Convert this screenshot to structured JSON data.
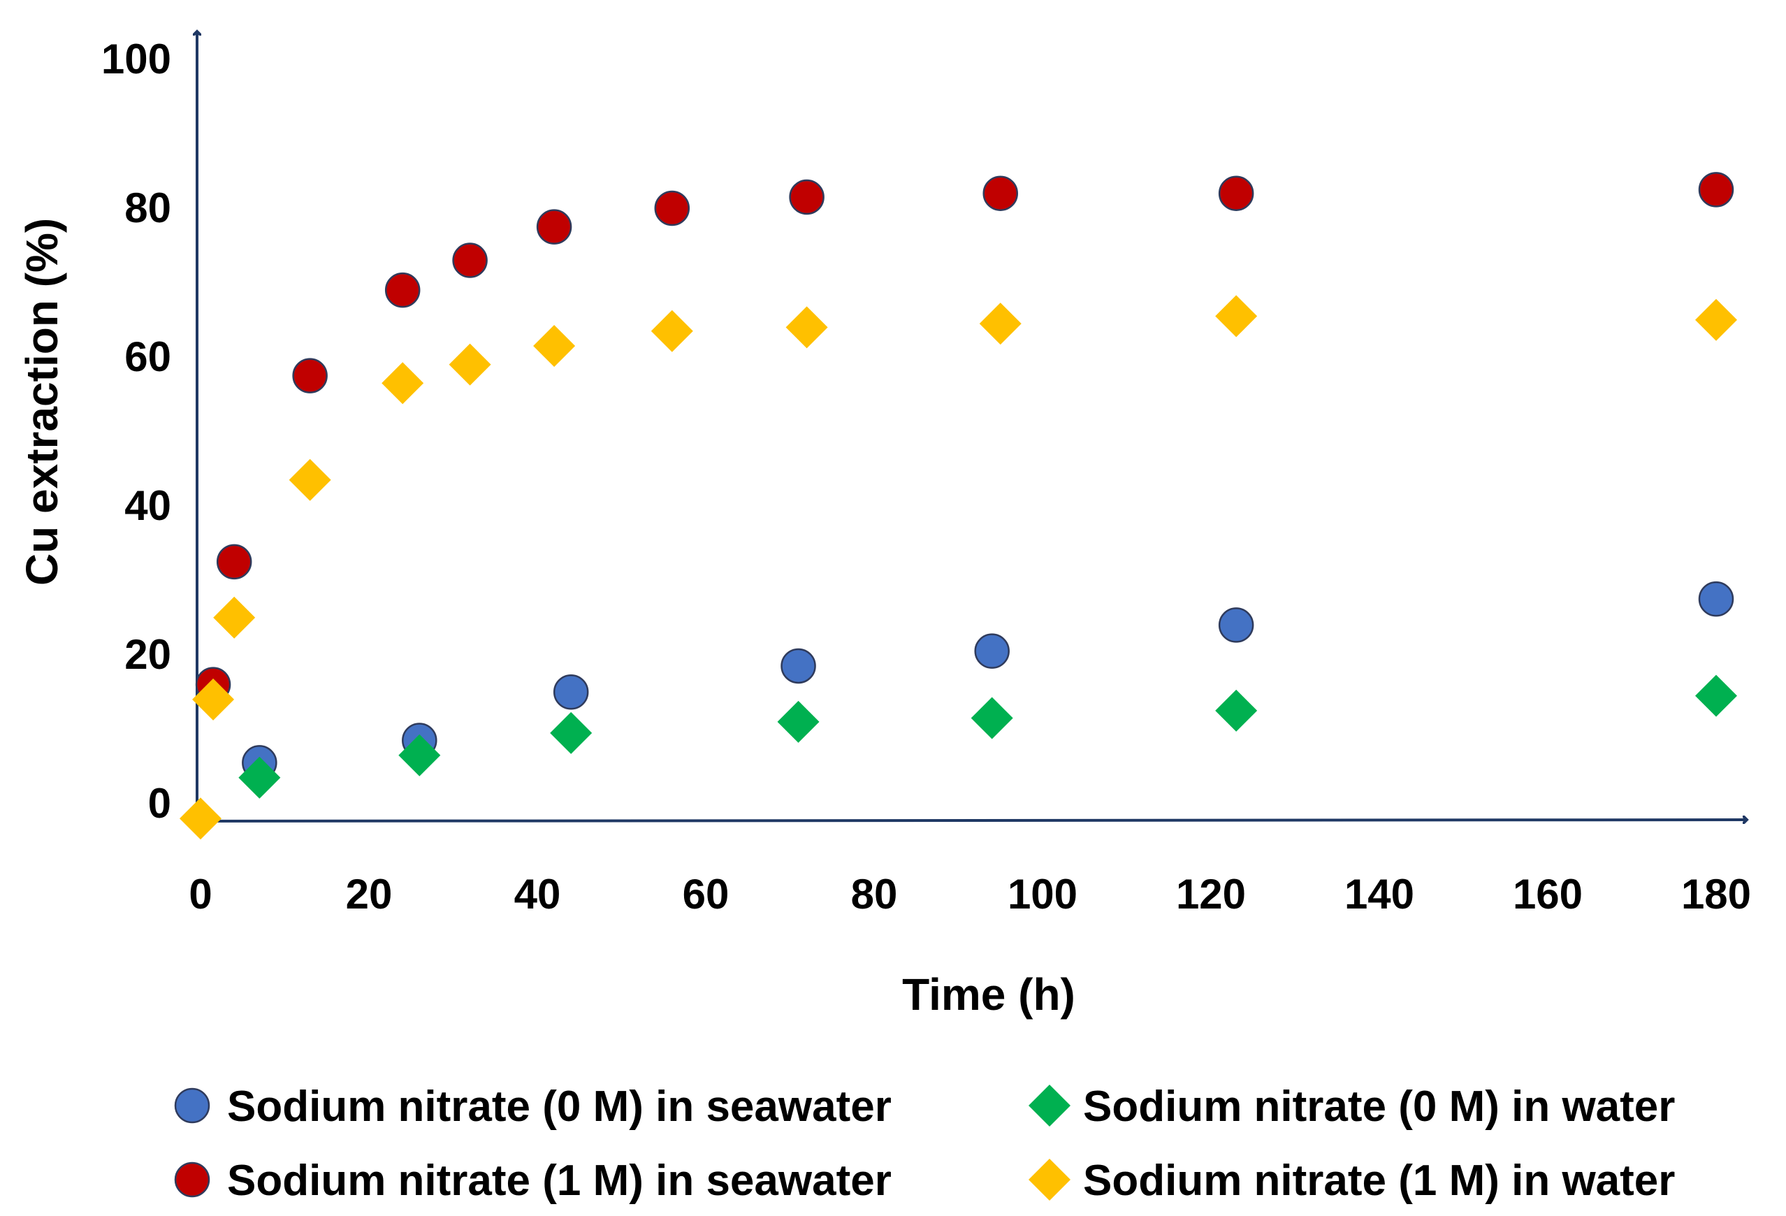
{
  "chart_data": {
    "type": "scatter",
    "title": "",
    "xlabel": "Time (h)",
    "ylabel": "Cu extraction (%)",
    "xlim": [
      0,
      180
    ],
    "ylim": [
      0,
      100
    ],
    "xticks": [
      0,
      20,
      40,
      60,
      80,
      100,
      120,
      140,
      160,
      180
    ],
    "yticks": [
      0,
      20,
      40,
      60,
      80,
      100
    ],
    "grid": false,
    "legend_position": "bottom",
    "series": [
      {
        "name": "Sodium nitrate (0 M) in seawater",
        "marker": "circle",
        "color": "#4472C4",
        "x": [
          7,
          26,
          44,
          71,
          94,
          123,
          180
        ],
        "y": [
          5.5,
          8.5,
          15,
          18.5,
          20.5,
          24,
          27.5
        ]
      },
      {
        "name": "Sodium nitrate (0 M) in water",
        "marker": "diamond",
        "color": "#00B050",
        "x": [
          7,
          26,
          44,
          71,
          94,
          123,
          180
        ],
        "y": [
          3.5,
          6.5,
          9.5,
          11,
          11.5,
          12.5,
          14.5
        ]
      },
      {
        "name": "Sodium nitrate (1 M) in seawater",
        "marker": "circle",
        "color": "#C00000",
        "x": [
          1.5,
          4,
          13,
          24,
          32,
          42,
          56,
          72,
          95,
          123,
          180
        ],
        "y": [
          16,
          32.5,
          57.5,
          69,
          73,
          77.5,
          80,
          81.5,
          82,
          82,
          82.5
        ]
      },
      {
        "name": "Sodium nitrate (1 M) in water",
        "marker": "diamond",
        "color": "#FFC000",
        "x": [
          0,
          1.5,
          4,
          13,
          24,
          32,
          42,
          56,
          72,
          95,
          123,
          180
        ],
        "y": [
          -2,
          14,
          25,
          43.5,
          56.5,
          59,
          61.5,
          63.5,
          64,
          64.5,
          65.5,
          65
        ]
      }
    ]
  }
}
